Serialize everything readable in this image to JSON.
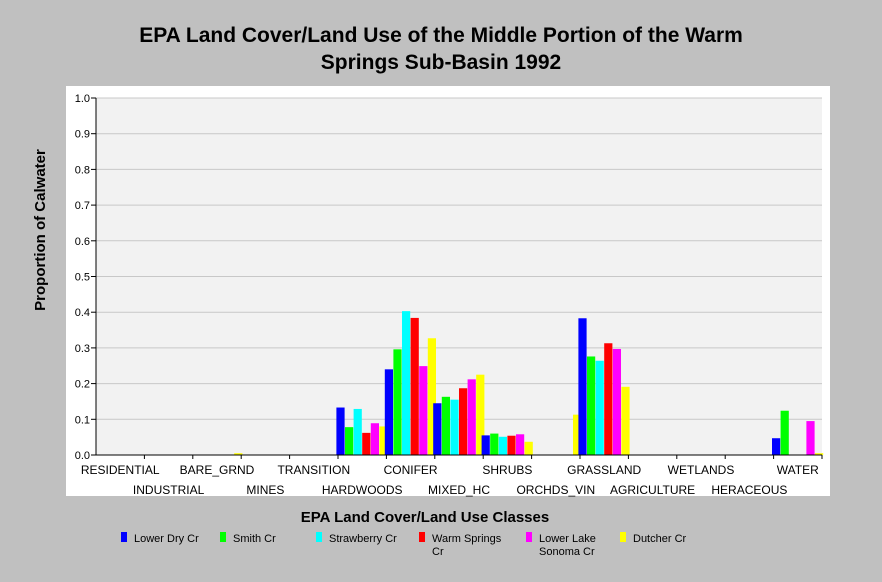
{
  "chart_data": {
    "type": "bar",
    "title_line1": "EPA Land Cover/Land Use of the Middle Portion of the Warm",
    "title_line2": "Springs Sub-Basin 1992",
    "xlabel": "EPA Land Cover/Land Use Classes",
    "ylabel": "Proportion of Calwater",
    "ylim": [
      0,
      1
    ],
    "yticks": [
      "0.0",
      "0.1",
      "0.2",
      "0.3",
      "0.4",
      "0.5",
      "0.6",
      "0.7",
      "0.8",
      "0.9",
      "1.0"
    ],
    "grid": true,
    "legend_position": "bottom",
    "categories": [
      "RESIDENTIAL",
      "INDUSTRIAL",
      "BARE_GRND",
      "MINES",
      "TRANSITION",
      "HARDWOODS",
      "CONIFER",
      "MIXED_HC",
      "SHRUBS",
      "ORCHDS_VIN",
      "GRASSLAND",
      "AGRICULTURE",
      "WETLANDS",
      "HERACEOUS",
      "WATER"
    ],
    "series": [
      {
        "name": "Lower Dry Cr",
        "legend_lines": [
          "Lower Dry Cr"
        ],
        "color": "#0000ff",
        "values": [
          0,
          0,
          0,
          0,
          0,
          0.133,
          0.24,
          0.145,
          0.055,
          0,
          0.383,
          0,
          0,
          0,
          0.047
        ]
      },
      {
        "name": "Smith Cr",
        "legend_lines": [
          "Smith Cr"
        ],
        "color": "#00ff00",
        "values": [
          0,
          0,
          0,
          0,
          0,
          0.078,
          0.296,
          0.163,
          0.06,
          0,
          0.276,
          0,
          0,
          0,
          0.124
        ]
      },
      {
        "name": "Strawberry Cr",
        "legend_lines": [
          "Strawberry Cr"
        ],
        "color": "#00ffff",
        "values": [
          0,
          0,
          0,
          0,
          0,
          0.129,
          0.403,
          0.155,
          0.051,
          0,
          0.264,
          0,
          0,
          0,
          0
        ]
      },
      {
        "name": "Warm Springs Cr",
        "legend_lines": [
          "Warm Springs",
          "Cr"
        ],
        "color": "#ff0000",
        "values": [
          0,
          0,
          0,
          0,
          0,
          0.062,
          0.384,
          0.187,
          0.054,
          0,
          0.313,
          0,
          0,
          0,
          0
        ]
      },
      {
        "name": "Lower Lake Sonoma Cr",
        "legend_lines": [
          "Lower Lake",
          "Sonoma Cr"
        ],
        "color": "#ff00ff",
        "values": [
          0,
          0,
          0,
          0,
          0,
          0.089,
          0.249,
          0.212,
          0.058,
          0,
          0.297,
          0,
          0,
          0,
          0.095
        ]
      },
      {
        "name": "Dutcher Cr",
        "legend_lines": [
          "Dutcher Cr"
        ],
        "color": "#ffff00",
        "values": [
          0,
          0,
          0.005,
          0,
          0,
          0.08,
          0.327,
          0.225,
          0.037,
          0.113,
          0.191,
          0,
          0,
          0,
          0.005
        ]
      }
    ]
  }
}
